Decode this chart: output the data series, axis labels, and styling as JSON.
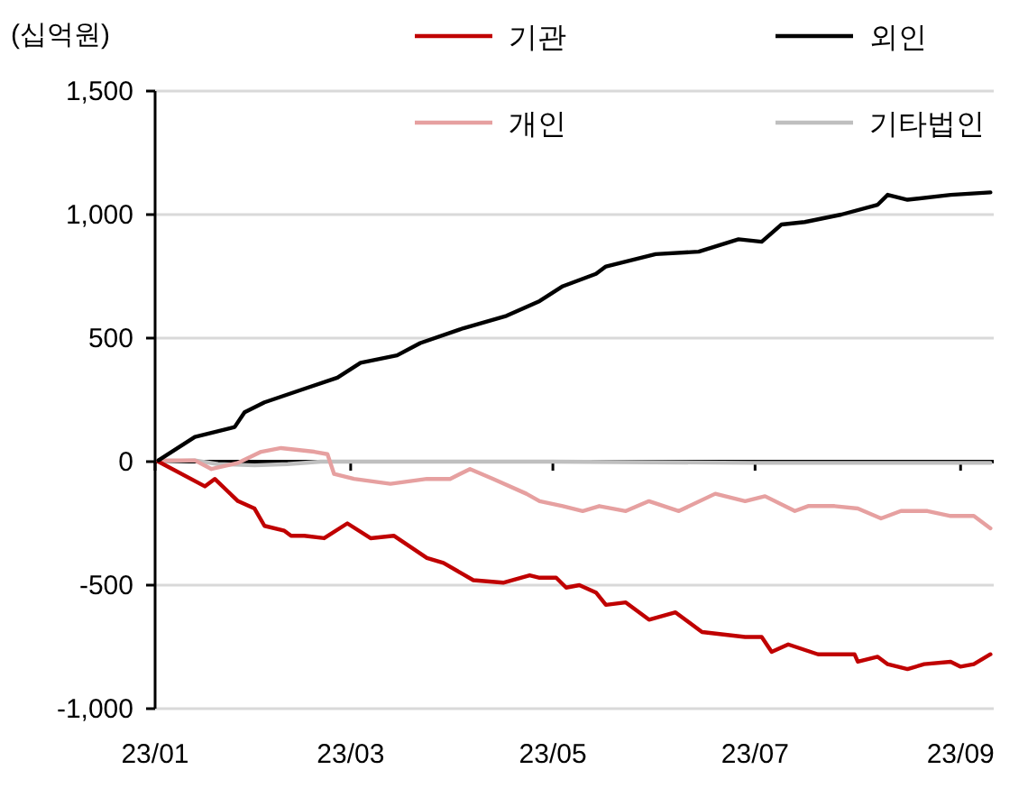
{
  "chart_data": {
    "type": "line",
    "ylabel": "(십억원)",
    "legend": "top",
    "grid": "y",
    "marker": "none",
    "line_style": "solid",
    "xlim": [
      "--01-01",
      "--09-11"
    ],
    "xticks": [
      {
        "value": "--01-01",
        "label": "23/01"
      },
      {
        "value": "--03-01",
        "label": "23/03"
      },
      {
        "value": "--05-01",
        "label": "23/05"
      },
      {
        "value": "--07-01",
        "label": "23/07"
      },
      {
        "value": "--09-01",
        "label": "23/09"
      }
    ],
    "ylim": [
      -1000,
      1500
    ],
    "yticks": [
      {
        "value": 1500,
        "label": "1,500"
      },
      {
        "value": 1000,
        "label": "1,000"
      },
      500,
      0,
      -500,
      {
        "value": -1000,
        "label": "-1,000"
      }
    ],
    "series": [
      {
        "name": "기관",
        "color": "#c00000",
        "x": [
          "--01-02",
          "--01-16",
          "--01-19",
          "--01-26",
          "--01-31",
          "--02-03",
          "--02-09",
          "--02-11",
          "--02-15",
          "--02-21",
          "--02-28",
          "--03-07",
          "--03-14",
          "--03-24",
          "--03-29",
          "--04-07",
          "--04-16",
          "--04-24",
          "--04-27",
          "--05-02",
          "--05-05",
          "--05-09",
          "--05-14",
          "--05-17",
          "--05-23",
          "--05-30",
          "--06-07",
          "--06-15",
          "--06-28",
          "--07-03",
          "--07-06",
          "--07-11",
          "--07-20",
          "--07-31",
          "--08-01",
          "--08-07",
          "--08-10",
          "--08-16",
          "--08-21",
          "--08-29",
          "--09-01",
          "--09-05",
          "--09-10"
        ],
        "values": [
          0,
          -100,
          -70,
          -160,
          -190,
          -260,
          -280,
          -300,
          -300,
          -310,
          -250,
          -310,
          -300,
          -390,
          -410,
          -480,
          -490,
          -460,
          -470,
          -470,
          -510,
          -500,
          -530,
          -580,
          -570,
          -640,
          -610,
          -690,
          -710,
          -710,
          -770,
          -740,
          -780,
          -780,
          -810,
          -790,
          -820,
          -840,
          -820,
          -810,
          -830,
          -820,
          -780
        ]
      },
      {
        "name": "외인",
        "color": "#000000",
        "x": [
          "--01-02",
          "--01-13",
          "--01-25",
          "--01-28",
          "--02-03",
          "--02-14",
          "--02-25",
          "--03-04",
          "--03-15",
          "--03-22",
          "--04-04",
          "--04-17",
          "--04-27",
          "--05-04",
          "--05-14",
          "--05-17",
          "--06-01",
          "--06-14",
          "--06-26",
          "--07-03",
          "--07-09",
          "--07-16",
          "--07-27",
          "--08-07",
          "--08-10",
          "--08-16",
          "--08-29",
          "--09-10"
        ],
        "values": [
          5,
          100,
          140,
          200,
          240,
          290,
          340,
          400,
          430,
          480,
          540,
          590,
          650,
          710,
          760,
          790,
          840,
          850,
          900,
          890,
          960,
          970,
          1000,
          1040,
          1080,
          1060,
          1080,
          1090
        ]
      },
      {
        "name": "개인",
        "color": "#e6a0a0",
        "x": [
          "--01-02",
          "--01-13",
          "--01-18",
          "--01-26",
          "--02-02",
          "--02-08",
          "--02-18",
          "--02-22",
          "--02-24",
          "--03-02",
          "--03-13",
          "--03-24",
          "--03-31",
          "--04-06",
          "--04-13",
          "--04-23",
          "--04-27",
          "--05-04",
          "--05-10",
          "--05-15",
          "--05-23",
          "--05-30",
          "--06-08",
          "--06-19",
          "--06-28",
          "--07-04",
          "--07-13",
          "--07-17",
          "--07-25",
          "--08-01",
          "--08-08",
          "--08-14",
          "--08-22",
          "--08-29",
          "--09-05",
          "--09-10"
        ],
        "values": [
          5,
          5,
          -30,
          -5,
          40,
          55,
          40,
          30,
          -50,
          -70,
          -90,
          -70,
          -70,
          -30,
          -70,
          -130,
          -160,
          -180,
          -200,
          -180,
          -200,
          -160,
          -200,
          -130,
          -160,
          -140,
          -200,
          -180,
          -180,
          -190,
          -230,
          -200,
          -200,
          -220,
          -220,
          -270
        ]
      },
      {
        "name": "기타법인",
        "color": "#bfbfbf",
        "x": [
          "--01-02",
          "--01-13",
          "--01-20",
          "--01-31",
          "--02-10",
          "--02-20",
          "--05-01",
          "--07-01",
          "--09-10"
        ],
        "values": [
          0,
          5,
          -10,
          -15,
          -10,
          0,
          0,
          -5,
          -5
        ]
      }
    ]
  }
}
